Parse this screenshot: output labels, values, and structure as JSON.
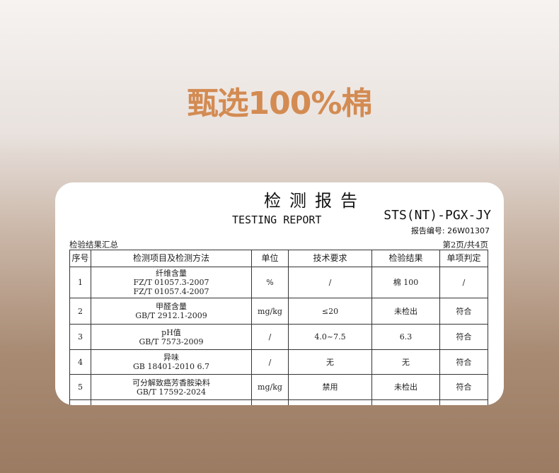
{
  "headline": "甄选100%棉",
  "report": {
    "title_cn": "检测报告",
    "title_en": "TESTING REPORT",
    "code": "STS(NT)-PGX-JY",
    "report_no": "报告编号: 26W01307",
    "summary_label": "检验结果汇总",
    "page": "第2页/共4页",
    "watermark": "STS",
    "columns": [
      "序号",
      "检测项目及检测方法",
      "单位",
      "技术要求",
      "检验结果",
      "单项判定"
    ],
    "rows": [
      {
        "no": "1",
        "item": [
          "纤维含量",
          "FZ/T 01057.3-2007",
          "FZ/T 01057.4-2007"
        ],
        "unit": "%",
        "req": "/",
        "result": "棉 100",
        "verdict": "/"
      },
      {
        "no": "2",
        "item": [
          "甲醛含量",
          "GB/T 2912.1-2009"
        ],
        "unit": "mg/kg",
        "req": "≤20",
        "result": "未检出",
        "verdict": "符合"
      },
      {
        "no": "3",
        "item": [
          "pH值",
          "GB/T 7573-2009"
        ],
        "unit": "/",
        "req": "4.0~7.5",
        "result": "6.3",
        "verdict": "符合"
      },
      {
        "no": "4",
        "item": [
          "异味",
          "GB 18401-2010 6.7"
        ],
        "unit": "/",
        "req": "无",
        "result": "无",
        "verdict": "符合"
      },
      {
        "no": "5",
        "item": [
          "可分解致癌芳香胺染料",
          "GB/T 17592-2024"
        ],
        "unit": "mg/kg",
        "req": "禁用",
        "result": "未检出",
        "verdict": "符合"
      }
    ]
  }
}
